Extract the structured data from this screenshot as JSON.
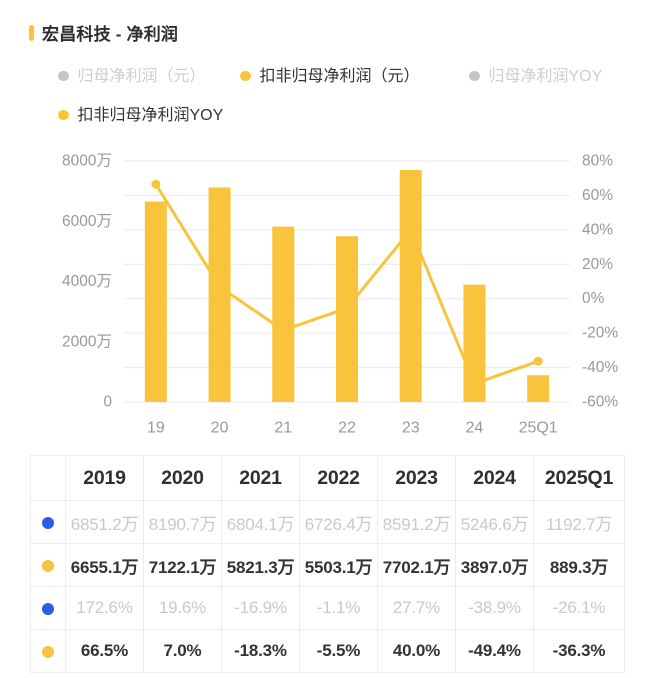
{
  "header": {
    "title": "宏昌科技 - 净利润",
    "accent_color": "#F8C43C"
  },
  "legend": {
    "rows": [
      [
        {
          "label": "归母净利润（元）",
          "active": false
        },
        {
          "label": "扣非归母净利润（元）",
          "active": true
        },
        {
          "label": "归母净利润YOY",
          "active": false
        }
      ],
      [
        {
          "label": "扣非归母净利润YOY",
          "active": true
        }
      ]
    ],
    "active_dot_color": "#F8C43C",
    "inactive_dot_color": "#c3c5c9",
    "active_text_color": "#333333",
    "inactive_text_color": "#cdced2"
  },
  "chart_data": {
    "type": "bar+line",
    "categories": [
      "19",
      "20",
      "21",
      "22",
      "23",
      "24",
      "25Q1"
    ],
    "series": [
      {
        "name": "扣非归母净利润（元）",
        "type": "bar",
        "unit": "万",
        "values": [
          6655.1,
          7122.1,
          5821.3,
          5503.1,
          7702.1,
          3897.0,
          889.3
        ]
      },
      {
        "name": "扣非归母净利润YOY",
        "type": "line",
        "unit": "%",
        "values": [
          66.5,
          7.0,
          -18.3,
          -5.5,
          40.0,
          -49.4,
          -36.3
        ]
      }
    ],
    "hidden_series": [
      {
        "name": "归母净利润（元）",
        "type": "bar",
        "unit": "万",
        "values": [
          6851.2,
          8190.7,
          6804.1,
          6726.4,
          8591.2,
          5246.6,
          1192.7
        ]
      },
      {
        "name": "归母净利润YOY",
        "type": "line",
        "unit": "%",
        "values": [
          172.6,
          19.6,
          -16.9,
          -1.1,
          27.7,
          -38.9,
          -26.1
        ]
      }
    ],
    "left_axis": {
      "min": 0,
      "max": 8000,
      "tick_step": 2000,
      "labels": [
        "8000万",
        "6000万",
        "4000万",
        "2000万",
        "0"
      ]
    },
    "right_axis": {
      "min": -60,
      "max": 80,
      "tick_step": 20,
      "labels": [
        "80%",
        "60%",
        "40%",
        "20%",
        "0%",
        "-20%",
        "-40%",
        "-60%"
      ]
    },
    "grid": true,
    "bar_color": "#F8C43C",
    "line_color": "#F8C43C",
    "axis_text_color": "#999999",
    "gridline_color": "#e9e9eb"
  },
  "table": {
    "header": [
      "",
      "2019",
      "2020",
      "2021",
      "2022",
      "2023",
      "2024",
      "2025Q1"
    ],
    "rows": [
      {
        "dot": "#2A5CE8",
        "muted": true,
        "values": [
          "6851.2万",
          "8190.7万",
          "6804.1万",
          "6726.4万",
          "8591.2万",
          "5246.6万",
          "1192.7万"
        ]
      },
      {
        "dot": "#F8C43C",
        "muted": false,
        "values": [
          "6655.1万",
          "7122.1万",
          "5821.3万",
          "5503.1万",
          "7702.1万",
          "3897.0万",
          "889.3万"
        ]
      },
      {
        "dot": "#2A5CE8",
        "muted": true,
        "values": [
          "172.6%",
          "19.6%",
          "-16.9%",
          "-1.1%",
          "27.7%",
          "-38.9%",
          "-26.1%"
        ]
      },
      {
        "dot": "#F8C43C",
        "muted": false,
        "values": [
          "66.5%",
          "7.0%",
          "-18.3%",
          "-5.5%",
          "40.0%",
          "-49.4%",
          "-36.3%"
        ]
      }
    ]
  }
}
